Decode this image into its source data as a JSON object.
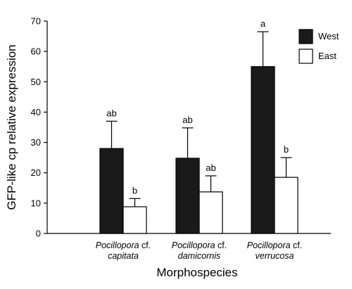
{
  "chart_data": {
    "type": "bar",
    "ylabel": "GFP-like cp relative expression",
    "xlabel": "Morphospecies",
    "ylim": [
      0,
      70
    ],
    "yticks": [
      0,
      10,
      20,
      30,
      40,
      50,
      60,
      70
    ],
    "grid": false,
    "legend_position": "top-right",
    "categories": [
      {
        "italic": "Pocillopora",
        "suffix": " cf.",
        "second": "capitata"
      },
      {
        "italic": "Pocillopora",
        "suffix": " cf.",
        "second": "damicornis"
      },
      {
        "italic": "Pocillopora",
        "suffix": " cf.",
        "second": "verrucosa"
      }
    ],
    "series": [
      {
        "name": "West",
        "color": "#1a1a1a",
        "values": [
          28,
          24.8,
          55
        ],
        "errors": [
          9,
          10,
          11.5
        ],
        "letters": [
          "ab",
          "ab",
          "a"
        ]
      },
      {
        "name": "East",
        "color": "#ffffff",
        "values": [
          8.8,
          13.7,
          18.5
        ],
        "errors": [
          2.7,
          5.3,
          6.5
        ],
        "letters": [
          "b",
          "ab",
          "b"
        ]
      }
    ]
  }
}
